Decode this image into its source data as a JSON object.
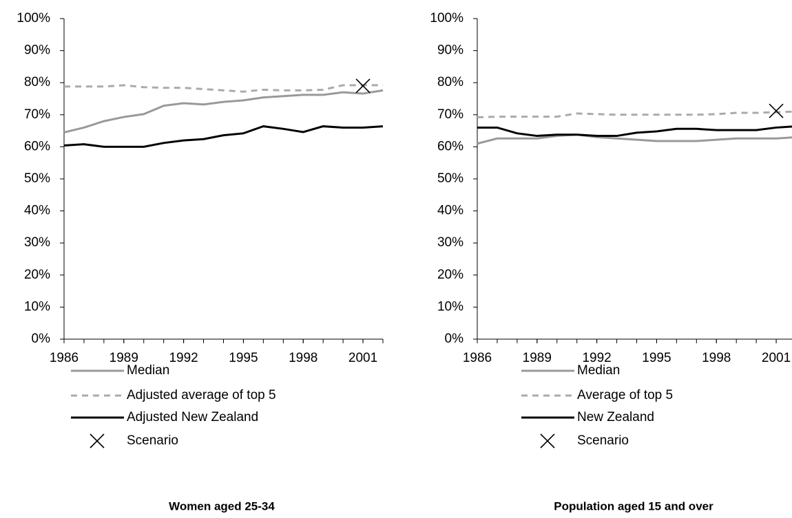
{
  "chart_data": [
    {
      "type": "line",
      "title": "Women aged 25-34",
      "x": [
        1986,
        1987,
        1988,
        1989,
        1990,
        1991,
        1992,
        1993,
        1994,
        1995,
        1996,
        1997,
        1998,
        1999,
        2000,
        2001,
        2002
      ],
      "xlim": [
        1986,
        2002
      ],
      "xticks": [
        1986,
        1989,
        1992,
        1995,
        1998,
        2001
      ],
      "ylim": [
        0,
        100
      ],
      "yticks": [
        {
          "value": 0,
          "label": "0%"
        },
        {
          "value": 10,
          "label": "10%"
        },
        {
          "value": 20,
          "label": "20%"
        },
        {
          "value": 30,
          "label": "30%"
        },
        {
          "value": 40,
          "label": "40%"
        },
        {
          "value": 50,
          "label": "50%"
        },
        {
          "value": 60,
          "label": "60%"
        },
        {
          "value": 70,
          "label": "70%"
        },
        {
          "value": 80,
          "label": "80%"
        },
        {
          "value": 90,
          "label": "90%"
        },
        {
          "value": 100,
          "label": "100%"
        }
      ],
      "series": [
        {
          "name": "Median",
          "color": "#999999",
          "style": "solid",
          "values": [
            64.5,
            66,
            68,
            69.3,
            70.2,
            72.8,
            73.6,
            73.2,
            74,
            74.5,
            75.4,
            75.8,
            76.2,
            76.2,
            77,
            76.6,
            77.6
          ]
        },
        {
          "name": "Adjusted average of top 5",
          "color": "#aaaaaa",
          "style": "dashed",
          "values": [
            78.8,
            78.8,
            78.8,
            79.2,
            78.6,
            78.4,
            78.4,
            78,
            77.6,
            77.2,
            77.8,
            77.6,
            77.6,
            77.8,
            79.2,
            79.2,
            79.2
          ]
        },
        {
          "name": "Adjusted New Zealand",
          "color": "#000000",
          "style": "solid",
          "values": [
            60.4,
            60.8,
            60,
            60,
            60,
            61.2,
            62,
            62.4,
            63.6,
            64.2,
            66.4,
            65.6,
            64.6,
            66.4,
            66,
            66,
            66.4
          ]
        },
        {
          "name": "Scenario",
          "color": "#000000",
          "style": "marker",
          "x": [
            2001
          ],
          "values": [
            79
          ]
        }
      ]
    },
    {
      "type": "line",
      "title": "Population aged 15 and over",
      "x": [
        1986,
        1987,
        1988,
        1989,
        1990,
        1991,
        1992,
        1993,
        1994,
        1995,
        1996,
        1997,
        1998,
        1999,
        2000,
        2001,
        2002
      ],
      "xlim": [
        1986,
        2002
      ],
      "xticks": [
        1986,
        1989,
        1992,
        1995,
        1998,
        2001
      ],
      "ylim": [
        0,
        100
      ],
      "yticks": [
        {
          "value": 0,
          "label": "0%"
        },
        {
          "value": 10,
          "label": "10%"
        },
        {
          "value": 20,
          "label": "20%"
        },
        {
          "value": 30,
          "label": "30%"
        },
        {
          "value": 40,
          "label": "40%"
        },
        {
          "value": 50,
          "label": "50%"
        },
        {
          "value": 60,
          "label": "60%"
        },
        {
          "value": 70,
          "label": "70%"
        },
        {
          "value": 80,
          "label": "80%"
        },
        {
          "value": 90,
          "label": "90%"
        },
        {
          "value": 100,
          "label": "100%"
        }
      ],
      "series": [
        {
          "name": "Median",
          "color": "#999999",
          "style": "solid",
          "values": [
            61,
            62.6,
            62.6,
            62.6,
            63.4,
            63.8,
            63,
            62.6,
            62.2,
            61.8,
            61.8,
            61.8,
            62.2,
            62.6,
            62.6,
            62.6,
            63
          ]
        },
        {
          "name": "Average of top 5",
          "color": "#aaaaaa",
          "style": "dashed",
          "values": [
            69.2,
            69.4,
            69.4,
            69.4,
            69.4,
            70.4,
            70.2,
            70,
            70,
            70,
            70,
            70,
            70.2,
            70.6,
            70.6,
            70.8,
            71
          ]
        },
        {
          "name": "New Zealand",
          "color": "#000000",
          "style": "solid",
          "values": [
            66,
            66,
            64.2,
            63.4,
            63.8,
            63.8,
            63.4,
            63.4,
            64.4,
            64.8,
            65.6,
            65.6,
            65.2,
            65.2,
            65.2,
            66,
            66.4
          ]
        },
        {
          "name": "Scenario",
          "color": "#000000",
          "style": "marker",
          "x": [
            2001
          ],
          "values": [
            71.2
          ]
        }
      ]
    }
  ]
}
